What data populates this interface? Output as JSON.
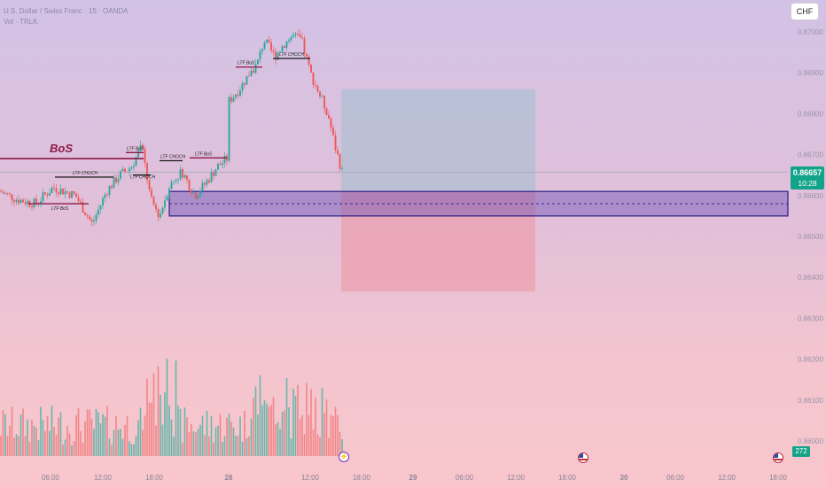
{
  "header": {
    "symbol_line": "U.S. Dollar / Swiss Franc · 15 · OANDA",
    "volume_line": "Vol · TRLK"
  },
  "toolbar": {
    "currency": "CHF"
  },
  "last_price": {
    "value": "0.86657",
    "countdown": "10:28"
  },
  "volume_last": "272",
  "icons": {
    "event_flag": "us-flag-icon",
    "bolt": "lightning-icon"
  },
  "colors": {
    "up": "#26a69a",
    "down": "#ef5350",
    "demand_zone": "#6a4fb5",
    "tp_zone": "#a5bfd0",
    "sl_zone": "#ec9ba8",
    "bos_line": "#8e1946",
    "choch_line": "#1a1a1a",
    "price_line": "#13a389"
  },
  "chart_data": {
    "type": "candlestick",
    "price_axis": {
      "ticks": [
        "0.87000",
        "0.86900",
        "0.86800",
        "0.86700",
        "0.86600",
        "0.86500",
        "0.86400",
        "0.86300",
        "0.86200",
        "0.86100",
        "0.86000"
      ],
      "ylim": [
        0.8598,
        0.8704
      ]
    },
    "time_axis": {
      "ticks": [
        "06:00",
        "12:00",
        "18:00",
        "28",
        "12:00",
        "18:00",
        "29",
        "06:00",
        "12:00",
        "18:00",
        "30",
        "06:00",
        "12:00",
        "18:00"
      ]
    },
    "annotations": [
      {
        "label": "BoS",
        "level": 0.8669
      },
      {
        "label": "LTF BoS",
        "level": 0.8658
      },
      {
        "label": "LTF CHOCH",
        "level": 0.86645
      },
      {
        "label": "LTF BoS",
        "level": 0.86705
      },
      {
        "label": "LTF CHOCH",
        "level": 0.8665
      },
      {
        "label": "LTF CHOCH",
        "level": 0.86685
      },
      {
        "label": "LTF BoS",
        "level": 0.86692
      },
      {
        "label": "LTF BoS",
        "level": 0.86914
      },
      {
        "label": "LTF CHOCH",
        "level": 0.86935
      }
    ],
    "demand_zone": {
      "top": 0.8661,
      "bottom": 0.8655,
      "midline": 0.8658
    },
    "position": {
      "entry": 0.8661,
      "take_profit": 0.8686,
      "stop_loss": 0.86365
    },
    "last_price": 0.86657,
    "last_volume": 272
  }
}
